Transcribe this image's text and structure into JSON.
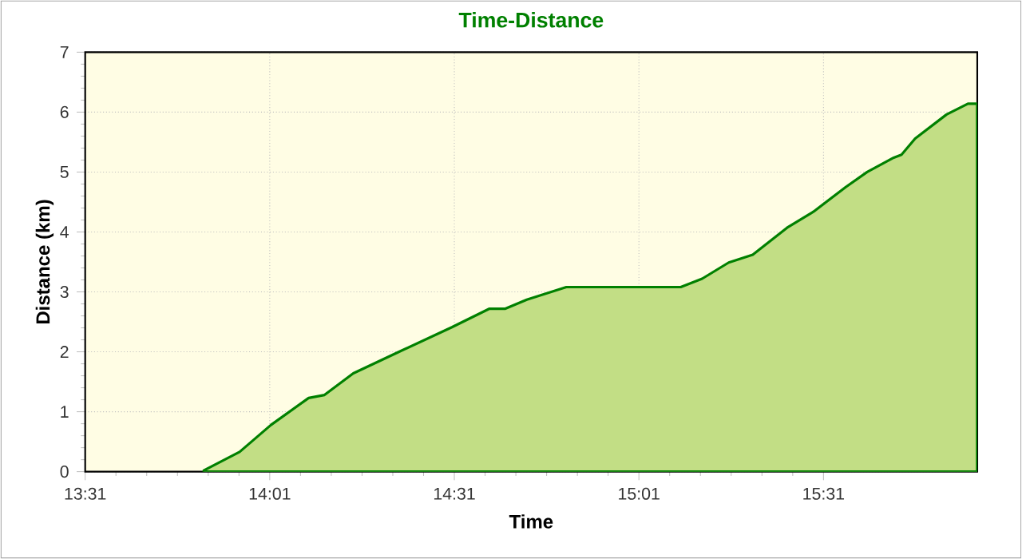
{
  "chart_data": {
    "type": "area",
    "title": "Time-Distance",
    "xlabel": "Time",
    "ylabel": "Distance (km)",
    "x": [
      13.838,
      13.935,
      14.02,
      14.122,
      14.165,
      14.243,
      14.367,
      14.51,
      14.612,
      14.655,
      14.713,
      14.82,
      15.13,
      15.188,
      15.26,
      15.325,
      15.418,
      15.49,
      15.577,
      15.635,
      15.707,
      15.728,
      15.765,
      15.85,
      15.908,
      15.933
    ],
    "series": [
      {
        "color": "#c2de85",
        "values": [
          0.02,
          0.33,
          0.78,
          1.23,
          1.28,
          1.64,
          2.0,
          2.41,
          2.72,
          2.72,
          2.87,
          3.08,
          3.08,
          3.22,
          3.49,
          3.62,
          4.07,
          4.34,
          4.75,
          5.0,
          5.24,
          5.29,
          5.56,
          5.96,
          6.14,
          6.14
        ]
      }
    ],
    "xlim": [
      13.5167,
      15.9333
    ],
    "xticks": [
      {
        "value": 13.5167,
        "label": "13:31"
      },
      {
        "value": 14.0167,
        "label": "14:01"
      },
      {
        "value": 14.5167,
        "label": "14:31"
      },
      {
        "value": 15.0167,
        "label": "15:01"
      },
      {
        "value": 15.5167,
        "label": "15:31"
      }
    ],
    "ylim": [
      0,
      7
    ],
    "yticks": [
      0,
      1,
      2,
      3,
      4,
      5,
      6,
      7
    ],
    "grid": true
  }
}
